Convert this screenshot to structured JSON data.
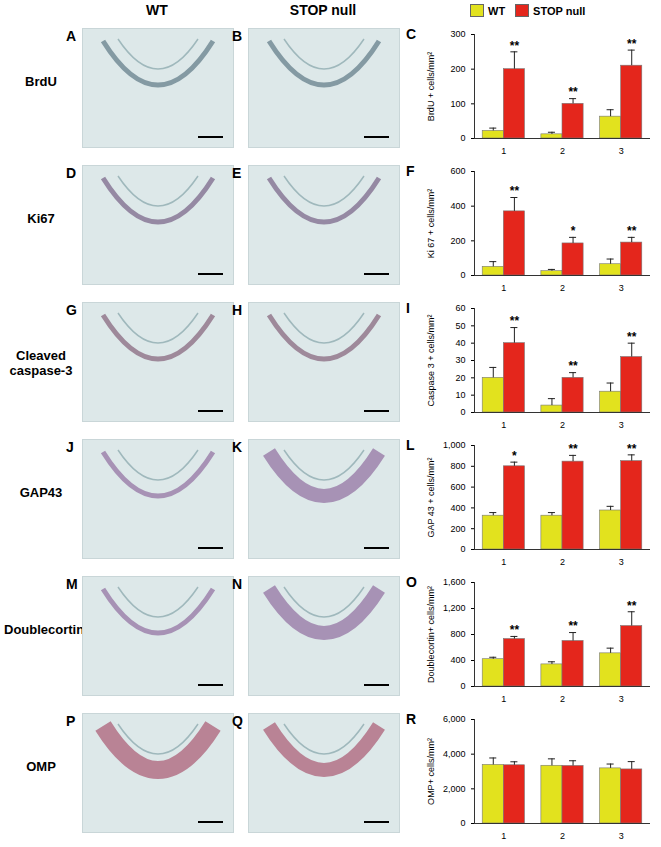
{
  "figure": {
    "column_titles": [
      "WT",
      "STOP null"
    ],
    "rows": [
      {
        "label": "BrdU",
        "panels": [
          "A",
          "B",
          "C"
        ]
      },
      {
        "label": "Ki67",
        "panels": [
          "D",
          "E",
          "F"
        ]
      },
      {
        "label": "Cleaved caspase-3",
        "panels": [
          "G",
          "H",
          "I"
        ]
      },
      {
        "label": "GAP43",
        "panels": [
          "J",
          "K",
          "L"
        ]
      },
      {
        "label": "Doublecortin",
        "panels": [
          "M",
          "N",
          "O"
        ]
      },
      {
        "label": "OMP",
        "panels": [
          "P",
          "Q",
          "R"
        ]
      }
    ]
  },
  "chart_data": [
    {
      "type": "bar",
      "ylabel": "BrdU + cells/mm²",
      "categories": [
        "1",
        "2",
        "3"
      ],
      "legend": "top",
      "series": [
        {
          "name": "WT",
          "color": "#e2e21e",
          "values": [
            22,
            12,
            63
          ],
          "errors": [
            8,
            6,
            20
          ]
        },
        {
          "name": "STOP null",
          "color": "#e4261c",
          "values": [
            200,
            100,
            210
          ],
          "errors": [
            50,
            15,
            45
          ],
          "annotations": [
            "**",
            "**",
            "**"
          ]
        }
      ],
      "ylim": [
        0,
        300
      ],
      "yticks": [
        0,
        100,
        200,
        300
      ]
    },
    {
      "type": "bar",
      "ylabel": "Ki 67 + cells/mm²",
      "categories": [
        "1",
        "2",
        "3"
      ],
      "series": [
        {
          "name": "WT",
          "color": "#e2e21e",
          "values": [
            50,
            25,
            65
          ],
          "errors": [
            30,
            10,
            30
          ]
        },
        {
          "name": "STOP null",
          "color": "#e4261c",
          "values": [
            370,
            185,
            190
          ],
          "errors": [
            80,
            35,
            30
          ],
          "annotations": [
            "**",
            "*",
            "**"
          ]
        }
      ],
      "ylim": [
        0,
        600
      ],
      "yticks": [
        0,
        200,
        400,
        600
      ]
    },
    {
      "type": "bar",
      "ylabel": "Caspase 3 + cells/mm²",
      "categories": [
        "1",
        "2",
        "3"
      ],
      "series": [
        {
          "name": "WT",
          "color": "#e2e21e",
          "values": [
            20,
            4,
            12
          ],
          "errors": [
            6,
            4,
            5
          ]
        },
        {
          "name": "STOP null",
          "color": "#e4261c",
          "values": [
            40,
            20,
            32
          ],
          "errors": [
            9,
            3,
            8
          ],
          "annotations": [
            "**",
            "**",
            "**"
          ]
        }
      ],
      "ylim": [
        0,
        60
      ],
      "yticks": [
        0,
        10,
        20,
        30,
        40,
        50,
        60
      ]
    },
    {
      "type": "bar",
      "ylabel": "GAP 43 + cells/mm²",
      "categories": [
        "1",
        "2",
        "3"
      ],
      "series": [
        {
          "name": "WT",
          "color": "#e2e21e",
          "values": [
            325,
            325,
            375
          ],
          "errors": [
            30,
            30,
            40
          ]
        },
        {
          "name": "STOP null",
          "color": "#e4261c",
          "values": [
            800,
            845,
            850
          ],
          "errors": [
            40,
            60,
            60
          ],
          "annotations": [
            "*",
            "**",
            "**"
          ]
        }
      ],
      "ylim": [
        0,
        1000
      ],
      "yticks": [
        0,
        200,
        400,
        600,
        800,
        1000
      ]
    },
    {
      "type": "bar",
      "ylabel": "Doublecortin+ cells/mm²",
      "categories": [
        "1",
        "2",
        "3"
      ],
      "series": [
        {
          "name": "WT",
          "color": "#e2e21e",
          "values": [
            420,
            340,
            510
          ],
          "errors": [
            30,
            40,
            80
          ]
        },
        {
          "name": "STOP null",
          "color": "#e4261c",
          "values": [
            730,
            700,
            930
          ],
          "errors": [
            40,
            130,
            220
          ],
          "annotations": [
            "**",
            "**",
            "**"
          ]
        }
      ],
      "ylim": [
        0,
        1600
      ],
      "yticks": [
        0,
        400,
        800,
        1200,
        1600
      ]
    },
    {
      "type": "bar",
      "ylabel": "OMP+ cells/mm²",
      "categories": [
        "1",
        "2",
        "3"
      ],
      "series": [
        {
          "name": "WT",
          "color": "#e2e21e",
          "values": [
            3380,
            3330,
            3180
          ],
          "errors": [
            400,
            400,
            250
          ]
        },
        {
          "name": "STOP null",
          "color": "#e4261c",
          "values": [
            3360,
            3320,
            3120
          ],
          "errors": [
            200,
            300,
            450
          ]
        }
      ],
      "ylim": [
        0,
        6000
      ],
      "yticks": [
        0,
        2000,
        4000,
        6000
      ]
    }
  ]
}
